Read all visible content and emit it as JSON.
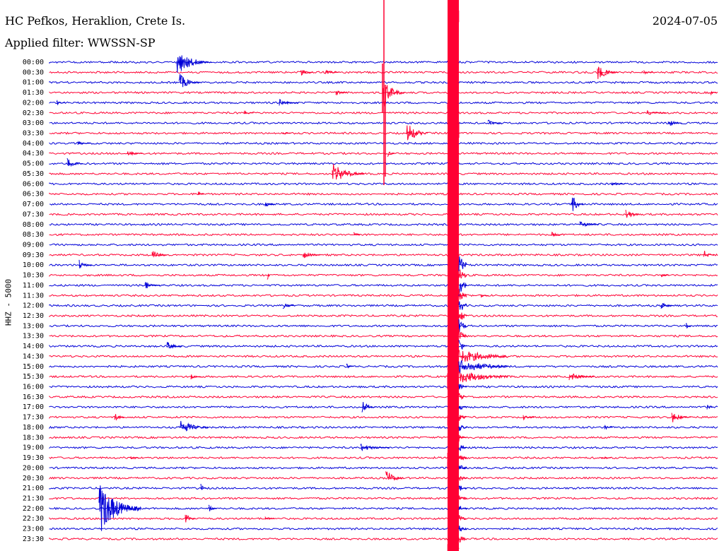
{
  "header": {
    "station": "HC Pefkos, Heraklion, Crete Is.",
    "filter": "Applied filter: WWSSN-SP",
    "date": "2024-07-05"
  },
  "colors": {
    "trace_a": "#0000d8",
    "trace_b": "#ff0033"
  },
  "chart_data": {
    "type": "line",
    "ylabel": "HHZ - 5000",
    "tick_labels": [
      "00:00",
      "00:30",
      "01:00",
      "01:30",
      "02:00",
      "02:30",
      "03:00",
      "03:30",
      "04:00",
      "04:30",
      "05:00",
      "05:30",
      "06:00",
      "06:30",
      "07:00",
      "07:30",
      "08:00",
      "08:30",
      "09:00",
      "09:30",
      "10:00",
      "10:30",
      "11:00",
      "11:30",
      "12:00",
      "12:30",
      "13:00",
      "13:30",
      "14:00",
      "14:30",
      "15:00",
      "15:30",
      "16:00",
      "16:30",
      "17:00",
      "17:30",
      "18:00",
      "18:30",
      "19:00",
      "19:30",
      "20:00",
      "20:30",
      "21:00",
      "21:30",
      "22:00",
      "22:30",
      "23:00",
      "23:30"
    ],
    "x_range_minutes": [
      0,
      30
    ],
    "grid": false,
    "legend": "none"
  }
}
